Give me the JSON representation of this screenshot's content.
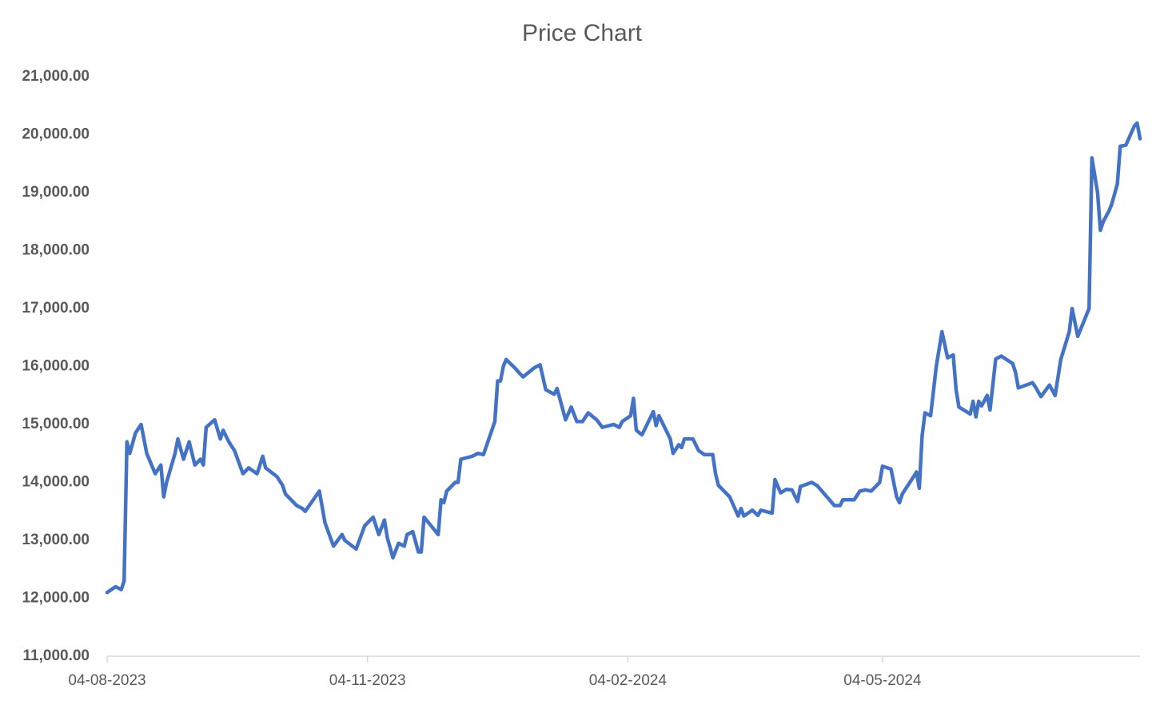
{
  "chart_data": {
    "type": "line",
    "title": "Price Chart",
    "x": [
      "2023-08-04",
      "2023-08-07",
      "2023-08-09",
      "2023-08-10",
      "2023-08-11",
      "2023-08-12",
      "2023-08-14",
      "2023-08-16",
      "2023-08-18",
      "2023-08-21",
      "2023-08-23",
      "2023-08-24",
      "2023-08-25",
      "2023-08-28",
      "2023-08-29",
      "2023-08-31",
      "2023-09-02",
      "2023-09-04",
      "2023-09-06",
      "2023-09-07",
      "2023-09-08",
      "2023-09-11",
      "2023-09-13",
      "2023-09-14",
      "2023-09-16",
      "2023-09-18",
      "2023-09-21",
      "2023-09-23",
      "2023-09-26",
      "2023-09-28",
      "2023-09-29",
      "2023-10-03",
      "2023-10-05",
      "2023-10-06",
      "2023-10-10",
      "2023-10-12",
      "2023-10-13",
      "2023-10-18",
      "2023-10-20",
      "2023-10-23",
      "2023-10-26",
      "2023-10-27",
      "2023-10-31",
      "2023-11-03",
      "2023-11-06",
      "2023-11-08",
      "2023-11-10",
      "2023-11-11",
      "2023-11-13",
      "2023-11-15",
      "2023-11-17",
      "2023-11-18",
      "2023-11-20",
      "2023-11-22",
      "2023-11-23",
      "2023-11-24",
      "2023-11-29",
      "2023-11-30",
      "2023-12-01",
      "2023-12-02",
      "2023-12-05",
      "2023-12-06",
      "2023-12-07",
      "2023-12-11",
      "2023-12-13",
      "2023-12-15",
      "2023-12-19",
      "2023-12-20",
      "2023-12-21",
      "2023-12-22",
      "2023-12-23",
      "2023-12-26",
      "2023-12-28",
      "2023-12-29",
      "2024-01-02",
      "2024-01-04",
      "2024-01-06",
      "2024-01-09",
      "2024-01-10",
      "2024-01-13",
      "2024-01-15",
      "2024-01-17",
      "2024-01-19",
      "2024-01-21",
      "2024-01-24",
      "2024-01-26",
      "2024-01-30",
      "2024-02-01",
      "2024-02-02",
      "2024-02-05",
      "2024-02-06",
      "2024-02-07",
      "2024-02-09",
      "2024-02-13",
      "2024-02-14",
      "2024-02-15",
      "2024-02-19",
      "2024-02-20",
      "2024-02-22",
      "2024-02-23",
      "2024-02-24",
      "2024-02-27",
      "2024-02-29",
      "2024-03-02",
      "2024-03-05",
      "2024-03-06",
      "2024-03-07",
      "2024-03-11",
      "2024-03-14",
      "2024-03-15",
      "2024-03-16",
      "2024-03-19",
      "2024-03-21",
      "2024-03-22",
      "2024-03-26",
      "2024-03-27",
      "2024-03-29",
      "2024-03-31",
      "2024-04-02",
      "2024-04-04",
      "2024-04-05",
      "2024-04-09",
      "2024-04-11",
      "2024-04-17",
      "2024-04-19",
      "2024-04-20",
      "2024-04-24",
      "2024-04-26",
      "2024-04-28",
      "2024-04-30",
      "2024-05-03",
      "2024-05-04",
      "2024-05-07",
      "2024-05-09",
      "2024-05-10",
      "2024-05-11",
      "2024-05-15",
      "2024-05-16",
      "2024-05-17",
      "2024-05-18",
      "2024-05-19",
      "2024-05-21",
      "2024-05-23",
      "2024-05-25",
      "2024-05-27",
      "2024-05-29",
      "2024-05-30",
      "2024-05-31",
      "2024-06-04",
      "2024-06-05",
      "2024-06-06",
      "2024-06-07",
      "2024-06-08",
      "2024-06-10",
      "2024-06-11",
      "2024-06-13",
      "2024-06-15",
      "2024-06-19",
      "2024-06-20",
      "2024-06-21",
      "2024-06-26",
      "2024-06-27",
      "2024-06-29",
      "2024-07-02",
      "2024-07-04",
      "2024-07-06",
      "2024-07-09",
      "2024-07-10",
      "2024-07-12",
      "2024-07-16",
      "2024-07-17",
      "2024-07-19",
      "2024-07-20",
      "2024-07-21",
      "2024-07-23",
      "2024-07-24",
      "2024-07-26",
      "2024-07-27",
      "2024-07-29",
      "2024-08-01",
      "2024-08-02",
      "2024-08-03"
    ],
    "series": [
      {
        "name": "Price",
        "color": "#4472c4",
        "values": [
          12100,
          12200,
          12150,
          12300,
          14700,
          14500,
          14850,
          15000,
          14500,
          14150,
          14300,
          13750,
          14000,
          14500,
          14750,
          14400,
          14700,
          14300,
          14400,
          14300,
          14950,
          15080,
          14750,
          14900,
          14700,
          14550,
          14150,
          14250,
          14150,
          14450,
          14250,
          14100,
          13950,
          13800,
          13600,
          13550,
          13500,
          13850,
          13300,
          12900,
          13100,
          13000,
          12850,
          13250,
          13400,
          13100,
          13350,
          13050,
          12700,
          12950,
          12900,
          13100,
          13150,
          12800,
          12800,
          13400,
          13100,
          13700,
          13650,
          13850,
          14000,
          14000,
          14400,
          14450,
          14500,
          14480,
          15050,
          15750,
          15750,
          16000,
          16120,
          15980,
          15870,
          15820,
          15980,
          16030,
          15600,
          15520,
          15620,
          15080,
          15300,
          15050,
          15050,
          15200,
          15080,
          14950,
          15000,
          14950,
          15050,
          15150,
          15450,
          14900,
          14820,
          15220,
          14980,
          15150,
          14750,
          14500,
          14650,
          14600,
          14750,
          14750,
          14550,
          14480,
          14480,
          14150,
          13950,
          13750,
          13420,
          13550,
          13420,
          13520,
          13430,
          13520,
          13470,
          14050,
          13820,
          13880,
          13870,
          13670,
          13930,
          14000,
          13940,
          13600,
          13600,
          13700,
          13700,
          13850,
          13870,
          13850,
          14000,
          14280,
          14230,
          13750,
          13650,
          13800,
          14100,
          14180,
          13900,
          14800,
          15200,
          15150,
          16000,
          16600,
          16150,
          16200,
          15600,
          15300,
          15180,
          15400,
          15130,
          15400,
          15320,
          15500,
          15250,
          16130,
          16180,
          16050,
          15900,
          15630,
          15720,
          15650,
          15480,
          15680,
          15500,
          16120,
          16600,
          17000,
          16520,
          17000,
          19600,
          19000,
          18350,
          18500,
          18680,
          18800,
          19150,
          19800,
          19820,
          20150,
          20200,
          19930
        ]
      }
    ],
    "xlim": [
      "2023-08-04",
      "2024-08-03"
    ],
    "xticks": [
      {
        "value": "2023-08-04",
        "label": "04-08-2023"
      },
      {
        "value": "2023-11-04",
        "label": "04-11-2023"
      },
      {
        "value": "2024-02-04",
        "label": "04-02-2024"
      },
      {
        "value": "2024-05-04",
        "label": "04-05-2024"
      }
    ],
    "ylim": [
      11000,
      21000
    ],
    "yticks": [
      {
        "value": 11000,
        "label": "11,000.00"
      },
      {
        "value": 12000,
        "label": "12,000.00"
      },
      {
        "value": 13000,
        "label": "13,000.00"
      },
      {
        "value": 14000,
        "label": "14,000.00"
      },
      {
        "value": 15000,
        "label": "15,000.00"
      },
      {
        "value": 16000,
        "label": "16,000.00"
      },
      {
        "value": 17000,
        "label": "17,000.00"
      },
      {
        "value": 18000,
        "label": "18,000.00"
      },
      {
        "value": 19000,
        "label": "19,000.00"
      },
      {
        "value": 20000,
        "label": "20,000.00"
      },
      {
        "value": 21000,
        "label": "21,000.00"
      }
    ],
    "grid": false
  }
}
